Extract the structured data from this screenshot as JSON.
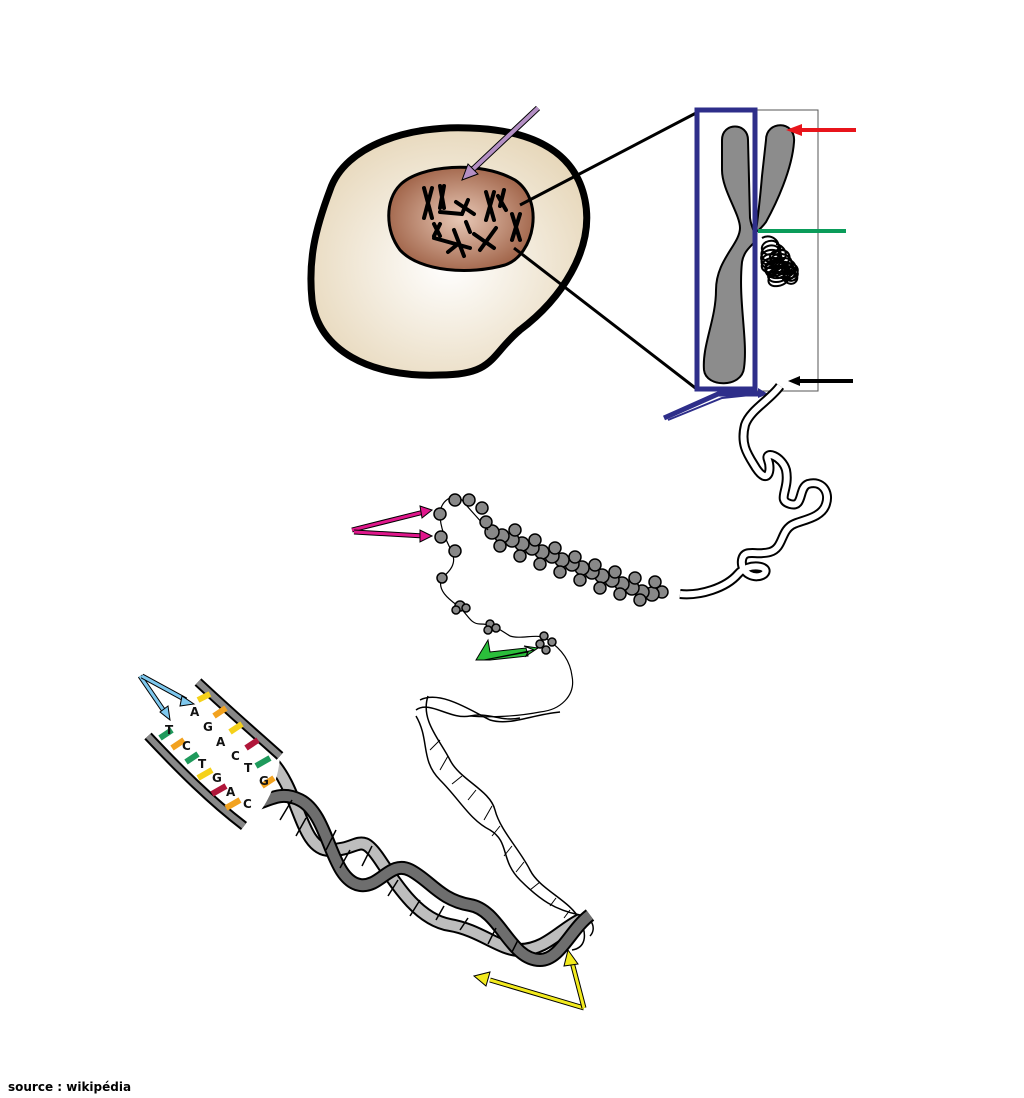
{
  "source_label": "source : wikipédia",
  "colors": {
    "cytoplasm": "#e9dcc2",
    "nucleus": "#a66a4f",
    "chromosome": "#8a8a8a",
    "chromatid_box": "#2e2e8a",
    "arrow_purple": "#b48fc4",
    "arrow_red": "#e8141b",
    "arrow_green_line": "#0a9c5a",
    "arrow_magenta": "#e0178c",
    "arrow_green": "#2bbf3b",
    "arrow_lightblue": "#7ec8ee",
    "arrow_yellow": "#f2ea1e",
    "base_green": "#1f9a5c",
    "base_orange": "#f2a21f",
    "base_yellow": "#f5d11a",
    "base_red": "#b0163a"
  },
  "base_pairs": [
    {
      "left": "T",
      "right": "A"
    },
    {
      "left": "C",
      "right": "G"
    },
    {
      "left": "T",
      "right": "A"
    },
    {
      "left": "G",
      "right": "C"
    },
    {
      "left": "A",
      "right": "T"
    },
    {
      "left": "C",
      "right": "G"
    }
  ]
}
